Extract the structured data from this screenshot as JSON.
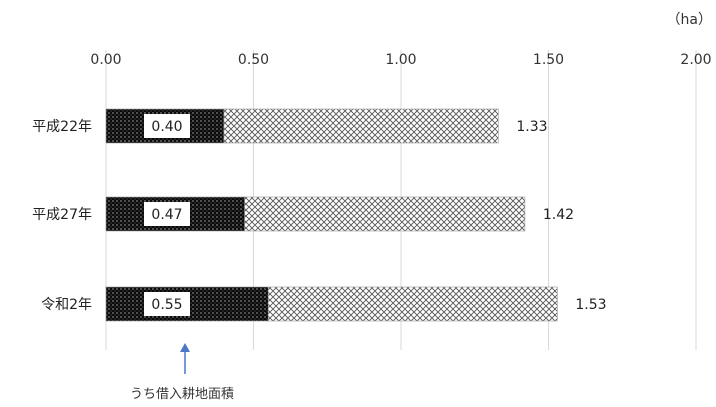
{
  "chart_data": {
    "type": "bar",
    "orientation": "horizontal",
    "stacked": true,
    "unit_label": "（ha）",
    "xlim": [
      0,
      2
    ],
    "x_ticks": [
      "0.00",
      "0.50",
      "1.00",
      "1.50",
      "2.00"
    ],
    "x_tick_values": [
      0,
      0.5,
      1.0,
      1.5,
      2.0
    ],
    "categories": [
      "平成22年",
      "平成27年",
      "令和2年"
    ],
    "series": [
      {
        "values": [
          0.4,
          0.47,
          0.55
        ],
        "value_labels": [
          "0.40",
          "0.47",
          "0.55"
        ],
        "pattern": "dense-dots",
        "color": "#111111"
      },
      {
        "values": [
          0.93,
          0.95,
          0.98
        ],
        "pattern": "crosshatch",
        "color": "#b8b8b8"
      }
    ],
    "totals": [
      1.33,
      1.42,
      1.53
    ],
    "total_labels": [
      "1.33",
      "1.42",
      "1.53"
    ],
    "annotation": {
      "text": "うち借入耕地面積",
      "points_to_series": 0,
      "arrow_color": "#4a78c6"
    },
    "grid": true
  }
}
